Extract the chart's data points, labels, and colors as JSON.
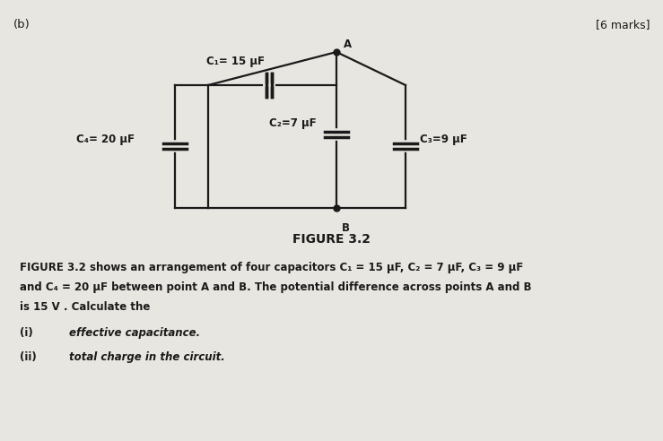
{
  "bg_color": "#e8e6e0",
  "text_color": "#1a1a1a",
  "label_b": "(b)",
  "label_marks": "[6 marks]",
  "fig_title": "FIGURE 3.2",
  "C1_label": "C₁= 15 μF",
  "C2_label": "C₂=7 μF",
  "C3_label": "C₃=9 μF",
  "C4_label": "C₄= 20 μF",
  "node_A": "A",
  "node_B": "B",
  "desc_line1": "FIGURE 3.2 shows an arrangement of four capacitors C₁ = 15 μF, C₂ = 7 μF, C₃ = 9 μF",
  "desc_line2": "and C₄ = 20 μF between point A and B. The potential difference across points A and B",
  "desc_line3": "is 15 V . Calculate the",
  "item_i_num": "(i)",
  "item_i_text": "effective capacitance.",
  "item_ii_num": "(ii)",
  "item_ii_text": "total charge in the circuit."
}
